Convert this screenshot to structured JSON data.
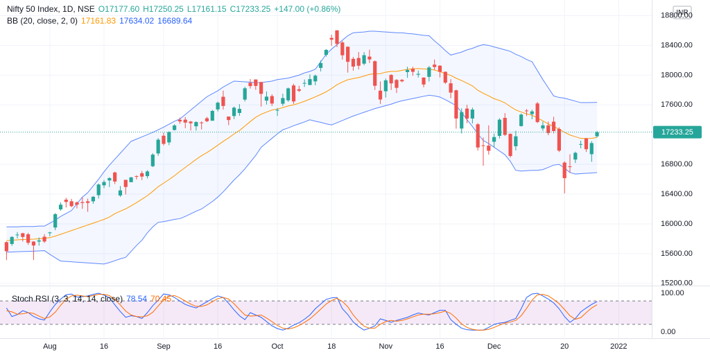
{
  "chart_data": {
    "type": "candlestick",
    "header": {
      "title": "Nifty 50 Index, 1D, NSE",
      "open": "O17177.60",
      "high": "H17250.25",
      "low": "L17161.15",
      "close": "C17233.25",
      "change": "+147.00 (+0.86%)"
    },
    "currency": "INR",
    "up_color": "#26a69a",
    "down_color": "#ef5350",
    "open": [
      15754,
      15730,
      15847,
      15874,
      15860,
      15762,
      15762,
      15827,
      15875,
      15951,
      16195,
      16325,
      16304,
      16288,
      16293,
      16303,
      16303,
      16386,
      16518,
      16584,
      16691,
      16382,
      16592,
      16561,
      16642,
      16681,
      16642,
      16775,
      16947,
      17185,
      17095,
      17262,
      17399,
      17401,
      17375,
      17312,
      17363,
      17420,
      17387,
      17539,
      17709,
      17443,
      17450,
      17491,
      17671,
      17897,
      17941,
      17907,
      17657,
      17718,
      17531,
      17615,
      17661,
      17861,
      17810,
      17886,
      17867,
      17916,
      18097,
      18273,
      18500,
      18602,
      18439,
      18382,
      18219,
      18230,
      18154,
      18249,
      18187,
      17791,
      17783,
      18002,
      17935,
      17936,
      18041,
      18084,
      18006,
      17967,
      17977,
      18141,
      18127,
      18045,
      17890,
      17796,
      17282,
      17550,
      17417,
      17339,
      17056,
      17052,
      17104,
      17183,
      17425,
      17210,
      17044,
      17315,
      17524,
      17476,
      17619,
      17283,
      17324,
      17374,
      17276,
      16824,
      16773,
      16865,
      17067,
      17149,
      16937,
      17177.6
    ],
    "high": [
      15764,
      15834,
      15890,
      15881,
      15880,
      15768,
      15817,
      15862,
      15892,
      16146,
      16290,
      16350,
      16336,
      16302,
      16359,
      16339,
      16375,
      16543,
      16589,
      16628,
      16701,
      16509,
      16592,
      16632,
      16653,
      16712,
      16722,
      16951,
      17153,
      17225,
      17245,
      17340,
      17429,
      17436,
      17384,
      17379,
      17378,
      17439,
      17532,
      17644,
      17792,
      17443,
      17578,
      17610,
      17843,
      17947,
      17943,
      17912,
      17781,
      17743,
      17557,
      17750,
      17833,
      17884,
      17857,
      17941,
      18009,
      18009,
      18197,
      18350,
      18543,
      18604,
      18458,
      18384,
      18244,
      18311,
      18310,
      18342,
      18196,
      17915,
      17954,
      18013,
      17947,
      17947,
      18113,
      18112,
      18062,
      17971,
      18123,
      18210,
      18132,
      18048,
      17946,
      17805,
      17553,
      17601,
      17564,
      17355,
      17161,
      17325,
      17214,
      17420,
      17489,
      17216,
      17252,
      17484,
      17544,
      17535,
      17640,
      17376,
      17376,
      17440,
      17298,
      16841,
      16936,
      16971,
      17119,
      17155,
      17112,
      17250.25
    ],
    "low": [
      15513,
      15705,
      15805,
      15762,
      15718,
      15514,
      15707,
      15744,
      15834,
      15915,
      16177,
      16220,
      16223,
      16208,
      16202,
      16162,
      16270,
      16341,
      16480,
      16495,
      16535,
      16362,
      16395,
      16560,
      16597,
      16589,
      16611,
      16764,
      16915,
      17055,
      17059,
      17255,
      17345,
      17287,
      17255,
      17254,
      17269,
      17368,
      17386,
      17510,
      17537,
      17327,
      17409,
      17452,
      17645,
      17819,
      17802,
      17576,
      17604,
      17585,
      17452,
      17585,
      17640,
      17613,
      17771,
      17841,
      17865,
      17864,
      18050,
      18248,
      18393,
      18377,
      18209,
      18034,
      18060,
      18076,
      18132,
      18163,
      17800,
      17613,
      17699,
      17800,
      17760,
      17904,
      17964,
      17991,
      17968,
      17836,
      17915,
      18071,
      17968,
      17881,
      17689,
      17280,
      17216,
      17354,
      17351,
      16986,
      16782,
      16931,
      17028,
      17149,
      17181,
      16891,
      16988,
      17308,
      17450,
      17407,
      17355,
      17250,
      17192,
      17216,
      16966,
      16410,
      16688,
      16819,
      17015,
      16967,
      16834,
      17161.15
    ],
    "close": [
      15632,
      15824,
      15856,
      15824,
      15746,
      15709,
      15778,
      15763,
      15885,
      16130,
      16258,
      16295,
      16238,
      16258,
      16281,
      16282,
      16364,
      16529,
      16563,
      16615,
      16569,
      16450,
      16496,
      16625,
      16634,
      16636,
      16705,
      16931,
      17132,
      17076,
      17234,
      17323,
      17377,
      17362,
      17353,
      17369,
      17355,
      17380,
      17519,
      17629,
      17585,
      17396,
      17562,
      17546,
      17823,
      17853,
      17855,
      17748,
      17711,
      17618,
      17532,
      17691,
      17822,
      17646,
      17790,
      17895,
      17946,
      17992,
      18162,
      18339,
      18477,
      18419,
      18267,
      18179,
      18115,
      18126,
      18268,
      18211,
      17857,
      17672,
      17930,
      17889,
      17829,
      17917,
      18069,
      18045,
      18017,
      17874,
      18103,
      18109,
      18044,
      17899,
      17765,
      17417,
      17503,
      17416,
      17537,
      17027,
      17054,
      16983,
      17167,
      17401,
      17197,
      16913,
      17177,
      17470,
      17517,
      17512,
      17369,
      17325,
      17221,
      17248,
      16985,
      16615,
      16771,
      16955,
      17073,
      17004,
      17086,
      17233.25
    ],
    "bollinger": {
      "label": "BB (20, close, 2, 0)",
      "basis_color": "#ff9800",
      "band_color": "#2962ff",
      "basis": [
        15775,
        15780,
        15785,
        15790,
        15792,
        15795,
        15800,
        15805,
        15815,
        15835,
        15860,
        15885,
        15910,
        15935,
        15960,
        15985,
        16010,
        16035,
        16060,
        16092,
        16138,
        16170,
        16202,
        16242,
        16286,
        16332,
        16379,
        16437,
        16500,
        16547,
        16596,
        16647,
        16704,
        16759,
        16813,
        16867,
        16917,
        16959,
        17007,
        17058,
        17109,
        17156,
        17209,
        17255,
        17315,
        17376,
        17433,
        17474,
        17503,
        17530,
        17545,
        17563,
        17585,
        17600,
        17622,
        17648,
        17677,
        17708,
        17740,
        17776,
        17820,
        17871,
        17907,
        17938,
        17953,
        17967,
        17987,
        18010,
        18018,
        18020,
        18040,
        18050,
        18050,
        18064,
        18078,
        18085,
        18089,
        18083,
        18080,
        18069,
        18047,
        18021,
        17996,
        17958,
        17927,
        17892,
        17855,
        17796,
        17756,
        17721,
        17683,
        17659,
        17627,
        17577,
        17532,
        17504,
        17479,
        17461,
        17424,
        17385,
        17344,
        17311,
        17272,
        17232,
        17195,
        17172,
        17149,
        17148,
        17149,
        17161.83
      ],
      "upper": [
        15960,
        15960,
        15960,
        15965,
        15965,
        15965,
        15970,
        15970,
        16010,
        16050,
        16100,
        16140,
        16180,
        16270,
        16360,
        16420,
        16510,
        16600,
        16700,
        16790,
        16870,
        16950,
        17030,
        17110,
        17140,
        17170,
        17200,
        17230,
        17265,
        17300,
        17340,
        17380,
        17410,
        17470,
        17530,
        17590,
        17650,
        17710,
        17750,
        17790,
        17840,
        17880,
        17920,
        17915,
        17910,
        17905,
        17900,
        17900,
        17910,
        17920,
        17940,
        17950,
        17960,
        17980,
        18000,
        18030,
        18050,
        18080,
        18180,
        18280,
        18350,
        18410,
        18470,
        18530,
        18570,
        18575,
        18580,
        18590,
        18590,
        18585,
        18580,
        18575,
        18570,
        18570,
        18560,
        18555,
        18545,
        18535,
        18530,
        18460,
        18400,
        18330,
        18270,
        18290,
        18310,
        18340,
        18360,
        18390,
        18410,
        18400,
        18380,
        18360,
        18340,
        18320,
        18280,
        18250,
        18210,
        18180,
        18060,
        17940,
        17830,
        17720,
        17700,
        17690,
        17670,
        17650,
        17630,
        17630,
        17632,
        17634.02
      ],
      "lower": [
        15620,
        15622,
        15625,
        15628,
        15630,
        15633,
        15636,
        15640,
        15590,
        15545,
        15500,
        15495,
        15490,
        15485,
        15480,
        15475,
        15470,
        15465,
        15460,
        15480,
        15505,
        15530,
        15550,
        15630,
        15710,
        15780,
        15880,
        15960,
        16020,
        16030,
        16045,
        16060,
        16070,
        16100,
        16135,
        16170,
        16200,
        16250,
        16300,
        16360,
        16430,
        16510,
        16590,
        16660,
        16740,
        16830,
        16920,
        17030,
        17090,
        17150,
        17210,
        17265,
        17290,
        17320,
        17345,
        17370,
        17400,
        17380,
        17365,
        17345,
        17330,
        17360,
        17390,
        17420,
        17450,
        17475,
        17500,
        17525,
        17550,
        17570,
        17590,
        17610,
        17635,
        17655,
        17670,
        17685,
        17700,
        17715,
        17730,
        17720,
        17705,
        17670,
        17630,
        17590,
        17500,
        17400,
        17310,
        17210,
        17120,
        17080,
        17030,
        16980,
        16930,
        16840,
        16720,
        16710,
        16715,
        16720,
        16720,
        16730,
        16760,
        16790,
        16800,
        16750,
        16690,
        16670,
        16675,
        16680,
        16685,
        16689.64
      ]
    },
    "ylim": [
      15170,
      19010
    ],
    "yticks": [
      {
        "value": 15200,
        "label": "15200.00"
      },
      {
        "value": 15600,
        "label": "15600.00"
      },
      {
        "value": 16000,
        "label": "16000.00"
      },
      {
        "value": 16400,
        "label": "16400.00"
      },
      {
        "value": 16800,
        "label": "16800.00"
      },
      {
        "value": 17600,
        "label": "17600.00"
      },
      {
        "value": 18000,
        "label": "18000.00"
      },
      {
        "value": 18400,
        "label": "18400.00"
      },
      {
        "value": 18800,
        "label": "18800.00"
      }
    ],
    "xlim": [
      -1.2,
      119.1
    ],
    "xticks": [
      {
        "value": 8,
        "label": "Aug"
      },
      {
        "value": 18,
        "label": "16"
      },
      {
        "value": 29,
        "label": "Sep"
      },
      {
        "value": 39,
        "label": "16"
      },
      {
        "value": 50,
        "label": "Oct"
      },
      {
        "value": 60,
        "label": "18"
      },
      {
        "value": 70,
        "label": "Nov"
      },
      {
        "value": 80,
        "label": "16"
      },
      {
        "value": 90,
        "label": "Dec"
      },
      {
        "value": 103,
        "label": "20"
      },
      {
        "value": 113,
        "label": "2022"
      }
    ],
    "grid": true,
    "stoch_rsi": {
      "label": "Stoch RSI (3, 3, 14, 14, close)",
      "k_color": "#2962ff",
      "d_color": "#ff6d00",
      "k": [
        62,
        40,
        45,
        55,
        50,
        40,
        34,
        31,
        52,
        71,
        85,
        96,
        98,
        90,
        91,
        93,
        97,
        100,
        95,
        88,
        70,
        53,
        38,
        42,
        40,
        35,
        50,
        68,
        82,
        98,
        96,
        89,
        80,
        71,
        66,
        62,
        70,
        78,
        86,
        93,
        89,
        74,
        57,
        42,
        32,
        50,
        44,
        38,
        27,
        16,
        9,
        5,
        10,
        18,
        24,
        33,
        44,
        60,
        72,
        84,
        88,
        89,
        60,
        45,
        26,
        14,
        5,
        10,
        16,
        34,
        30,
        25,
        30,
        34,
        38,
        44,
        49,
        46,
        44,
        50,
        56,
        56,
        32,
        20,
        10,
        6,
        5,
        5,
        5,
        12,
        20,
        23,
        25,
        30,
        35,
        60,
        89,
        98,
        100,
        93,
        85,
        75,
        60,
        40,
        25,
        35,
        52,
        62,
        71,
        78.54
      ],
      "d": [
        55,
        52,
        46,
        47,
        50,
        48,
        41,
        35,
        39,
        51,
        69,
        84,
        93,
        95,
        93,
        91,
        94,
        97,
        97,
        94,
        84,
        70,
        54,
        44,
        40,
        39,
        42,
        51,
        67,
        83,
        92,
        94,
        88,
        80,
        72,
        66,
        66,
        70,
        78,
        86,
        89,
        85,
        73,
        58,
        44,
        41,
        42,
        44,
        36,
        27,
        17,
        10,
        8,
        11,
        17,
        25,
        34,
        46,
        59,
        72,
        81,
        87,
        79,
        65,
        44,
        28,
        15,
        10,
        10,
        20,
        27,
        30,
        28,
        30,
        34,
        39,
        44,
        46,
        46,
        47,
        50,
        54,
        48,
        36,
        21,
        12,
        7,
        5,
        5,
        7,
        12,
        18,
        23,
        26,
        30,
        42,
        61,
        82,
        96,
        97,
        93,
        84,
        73,
        58,
        42,
        33,
        37,
        50,
        62,
        70.45
      ],
      "ylim": [
        -16,
        116
      ],
      "yticks": [
        {
          "value": 0,
          "label": "0.00"
        },
        {
          "value": 100,
          "label": "100.00"
        }
      ],
      "levels": [
        20,
        80
      ],
      "level_color": "#9c27b0"
    }
  }
}
